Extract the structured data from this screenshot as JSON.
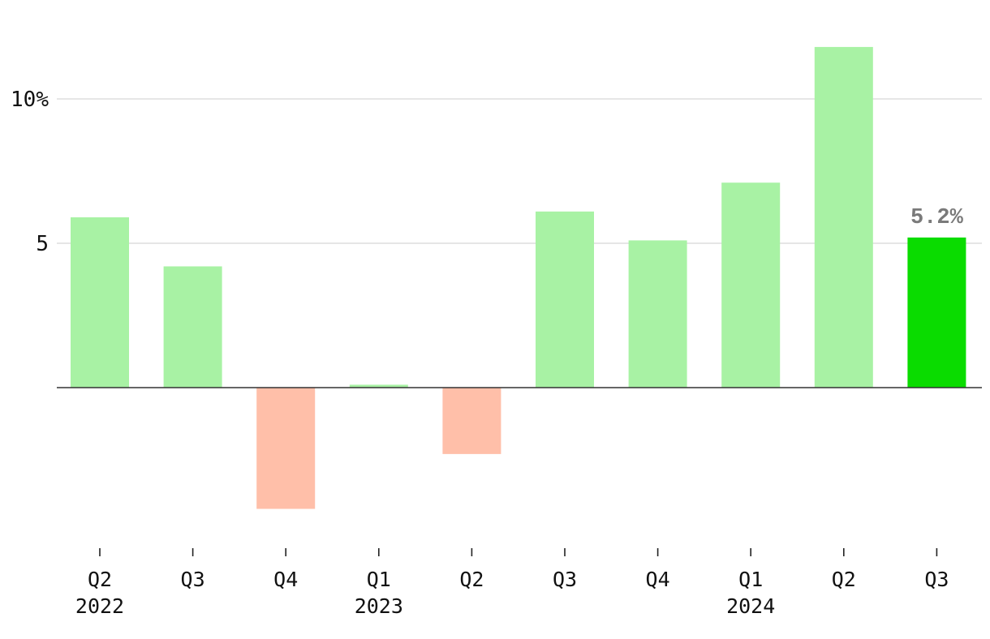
{
  "chart_data": {
    "type": "bar",
    "title": "",
    "xlabel": "",
    "ylabel": "",
    "ylim": [
      -5.5,
      12.5
    ],
    "y_ticks": [
      {
        "value": 10,
        "label": "10%"
      },
      {
        "value": 5,
        "label": "5"
      }
    ],
    "grid": true,
    "categories": [
      "Q2",
      "Q3",
      "Q4",
      "Q1",
      "Q2",
      "Q3",
      "Q4",
      "Q1",
      "Q2",
      "Q3"
    ],
    "year_labels": [
      "2022",
      "",
      "",
      "2023",
      "",
      "",
      "",
      "2024",
      "",
      ""
    ],
    "values": [
      5.9,
      4.2,
      -4.2,
      0.1,
      -2.3,
      6.1,
      5.1,
      7.1,
      11.8,
      5.2
    ],
    "highlight_index": 9,
    "data_labels": [
      {
        "index": 9,
        "text": "5.2%"
      }
    ],
    "colors": {
      "positive": "#a8f2a4",
      "negative": "#ffbfa9",
      "highlight": "#0adc00",
      "grid": "#dedede",
      "zero_line": "#333333",
      "data_label": "#7a7a7a"
    }
  }
}
